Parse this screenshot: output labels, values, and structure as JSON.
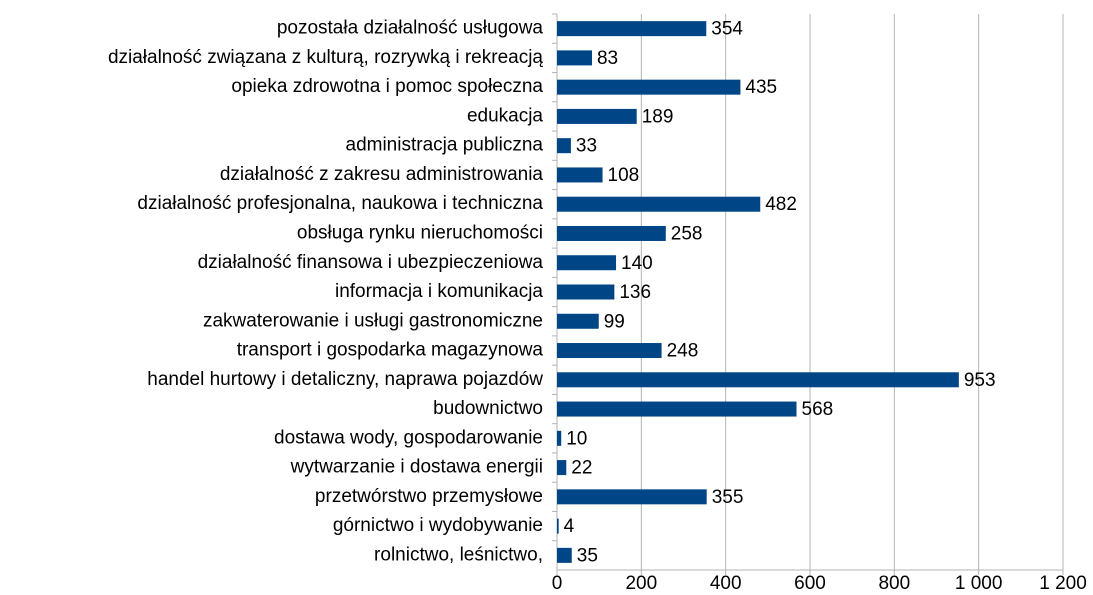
{
  "chart_data": {
    "type": "bar",
    "orientation": "horizontal",
    "categories": [
      "pozostała działalność usługowa",
      "działalność związana z kulturą, rozrywką i rekreacją",
      "opieka zdrowotna i pomoc społeczna",
      "edukacja",
      "administracja publiczna",
      "działalność z zakresu administrowania",
      "działalność profesjonalna, naukowa i techniczna",
      "obsługa rynku nieruchomości",
      "działalność finansowa i ubezpieczeniowa",
      "informacja i komunikacja",
      "zakwaterowanie i usługi gastronomiczne",
      "transport i gospodarka magazynowa",
      "handel hurtowy i detaliczny, naprawa pojazdów",
      "budownictwo",
      "dostawa wody, gospodarowanie",
      "wytwarzanie i dostawa energii",
      "przetwórstwo przemysłowe",
      "górnictwo i wydobywanie",
      "rolnictwo, leśnictwo,"
    ],
    "values": [
      354,
      83,
      435,
      189,
      33,
      108,
      482,
      258,
      140,
      136,
      99,
      248,
      953,
      568,
      10,
      22,
      355,
      4,
      35
    ],
    "color": "#004586",
    "xlim": [
      0,
      1200
    ],
    "xticks": [
      0,
      200,
      400,
      600,
      800,
      {
        "value": 1000,
        "label": "1 000"
      },
      {
        "value": 1200,
        "label": "1 200"
      }
    ],
    "grid": true
  }
}
